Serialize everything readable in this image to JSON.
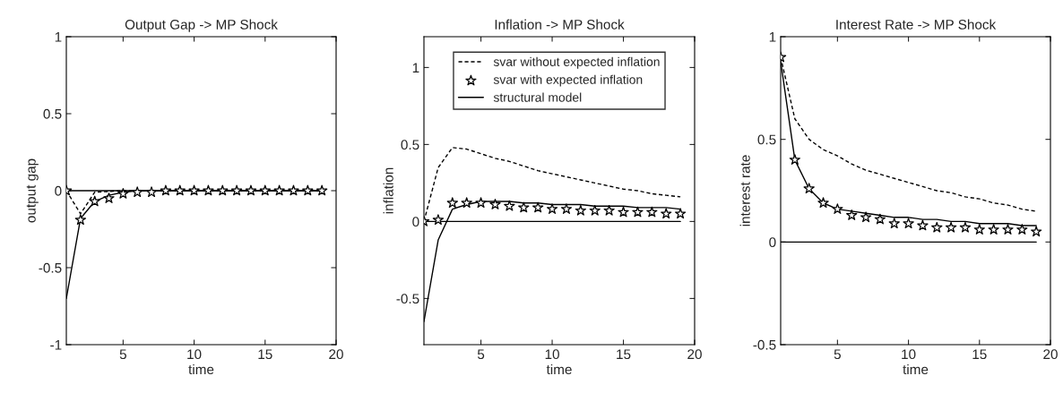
{
  "chart_data": [
    {
      "type": "line",
      "title": "Output Gap -> MP Shock",
      "xlabel": "time",
      "ylabel": "output gap",
      "x": [
        1,
        2,
        3,
        4,
        5,
        6,
        7,
        8,
        9,
        10,
        11,
        12,
        13,
        14,
        15,
        16,
        17,
        18,
        19
      ],
      "xlim": [
        1,
        20
      ],
      "xticks": [
        5,
        10,
        15,
        20
      ],
      "ylim": [
        -1,
        1
      ],
      "yticks": [
        -1,
        -0.5,
        0,
        0.5,
        1
      ],
      "grid": false,
      "legend": false,
      "series": [
        {
          "type": "line",
          "color": "#000000",
          "line_style": "dashed",
          "values": [
            0,
            -0.15,
            -0.01,
            -0.005,
            0,
            0,
            0,
            0,
            0,
            0,
            0,
            0,
            0,
            0,
            0,
            0,
            0,
            0,
            0
          ]
        },
        {
          "type": "scatter",
          "color": "#000000",
          "marker": "star",
          "values": [
            0,
            -0.19,
            -0.07,
            -0.05,
            -0.02,
            -0.01,
            -0.01,
            0,
            0,
            0,
            0,
            0,
            0,
            0,
            0,
            0,
            0,
            0,
            0
          ]
        },
        {
          "type": "line",
          "color": "#000000",
          "line_style": "solid",
          "values": [
            -0.7,
            -0.18,
            -0.07,
            -0.03,
            -0.01,
            0,
            0,
            0,
            0,
            0,
            0,
            0,
            0,
            0,
            0,
            0,
            0,
            0,
            0
          ]
        },
        {
          "type": "line",
          "color": "#000000",
          "line_style": "solid",
          "values": [
            0,
            0,
            0,
            0,
            0,
            0,
            0,
            0,
            0,
            0,
            0,
            0,
            0,
            0,
            0,
            0,
            0,
            0,
            0
          ]
        }
      ]
    },
    {
      "type": "line",
      "title": "Inflation -> MP Shock",
      "xlabel": "time",
      "ylabel": "inflation",
      "x": [
        1,
        2,
        3,
        4,
        5,
        6,
        7,
        8,
        9,
        10,
        11,
        12,
        13,
        14,
        15,
        16,
        17,
        18,
        19
      ],
      "xlim": [
        1,
        20
      ],
      "xticks": [
        5,
        10,
        15,
        20
      ],
      "ylim": [
        -0.8,
        1.2
      ],
      "yticks": [
        -0.5,
        0,
        0.5,
        1
      ],
      "grid": false,
      "legend": "top",
      "series": [
        {
          "type": "line",
          "name": "svar without expected inflation",
          "color": "#000000",
          "line_style": "dashed",
          "values": [
            0,
            0.35,
            0.48,
            0.47,
            0.44,
            0.41,
            0.39,
            0.36,
            0.33,
            0.31,
            0.29,
            0.27,
            0.25,
            0.23,
            0.21,
            0.2,
            0.18,
            0.17,
            0.16
          ]
        },
        {
          "type": "scatter",
          "name": "svar with expected inflation",
          "color": "#000000",
          "marker": "star",
          "values": [
            0,
            0.01,
            0.12,
            0.12,
            0.12,
            0.11,
            0.1,
            0.09,
            0.09,
            0.08,
            0.08,
            0.07,
            0.07,
            0.07,
            0.06,
            0.06,
            0.06,
            0.05,
            0.05
          ]
        },
        {
          "type": "line",
          "name": "structural model",
          "color": "#000000",
          "line_style": "solid",
          "values": [
            -0.65,
            -0.12,
            0.08,
            0.11,
            0.13,
            0.13,
            0.13,
            0.12,
            0.12,
            0.11,
            0.11,
            0.11,
            0.1,
            0.1,
            0.1,
            0.09,
            0.09,
            0.09,
            0.08
          ]
        },
        {
          "type": "line",
          "color": "#000000",
          "line_style": "solid",
          "values": [
            0,
            0,
            0,
            0,
            0,
            0,
            0,
            0,
            0,
            0,
            0,
            0,
            0,
            0,
            0,
            0,
            0,
            0,
            0
          ]
        }
      ]
    },
    {
      "type": "line",
      "title": "Interest Rate -> MP Shock",
      "xlabel": "time",
      "ylabel": "interest rate",
      "x": [
        1,
        2,
        3,
        4,
        5,
        6,
        7,
        8,
        9,
        10,
        11,
        12,
        13,
        14,
        15,
        16,
        17,
        18,
        19
      ],
      "xlim": [
        1,
        20
      ],
      "xticks": [
        5,
        10,
        15,
        20
      ],
      "ylim": [
        -0.5,
        1
      ],
      "yticks": [
        -0.5,
        0,
        0.5,
        1
      ],
      "grid": false,
      "legend": false,
      "series": [
        {
          "type": "line",
          "color": "#000000",
          "line_style": "dashed",
          "values": [
            0.9,
            0.6,
            0.5,
            0.45,
            0.42,
            0.38,
            0.35,
            0.33,
            0.31,
            0.29,
            0.27,
            0.25,
            0.24,
            0.22,
            0.21,
            0.19,
            0.18,
            0.16,
            0.15
          ]
        },
        {
          "type": "scatter",
          "color": "#000000",
          "marker": "star",
          "values": [
            0.9,
            0.4,
            0.26,
            0.19,
            0.16,
            0.13,
            0.12,
            0.11,
            0.09,
            0.09,
            0.08,
            0.07,
            0.07,
            0.07,
            0.06,
            0.06,
            0.06,
            0.06,
            0.05
          ]
        },
        {
          "type": "line",
          "color": "#000000",
          "line_style": "solid",
          "values": [
            0.88,
            0.4,
            0.26,
            0.19,
            0.16,
            0.15,
            0.14,
            0.13,
            0.12,
            0.12,
            0.11,
            0.11,
            0.1,
            0.1,
            0.09,
            0.09,
            0.09,
            0.08,
            0.08
          ]
        },
        {
          "type": "line",
          "color": "#000000",
          "line_style": "solid",
          "values": [
            0,
            0,
            0,
            0,
            0,
            0,
            0,
            0,
            0,
            0,
            0,
            0,
            0,
            0,
            0,
            0,
            0,
            0,
            0
          ]
        }
      ]
    }
  ]
}
